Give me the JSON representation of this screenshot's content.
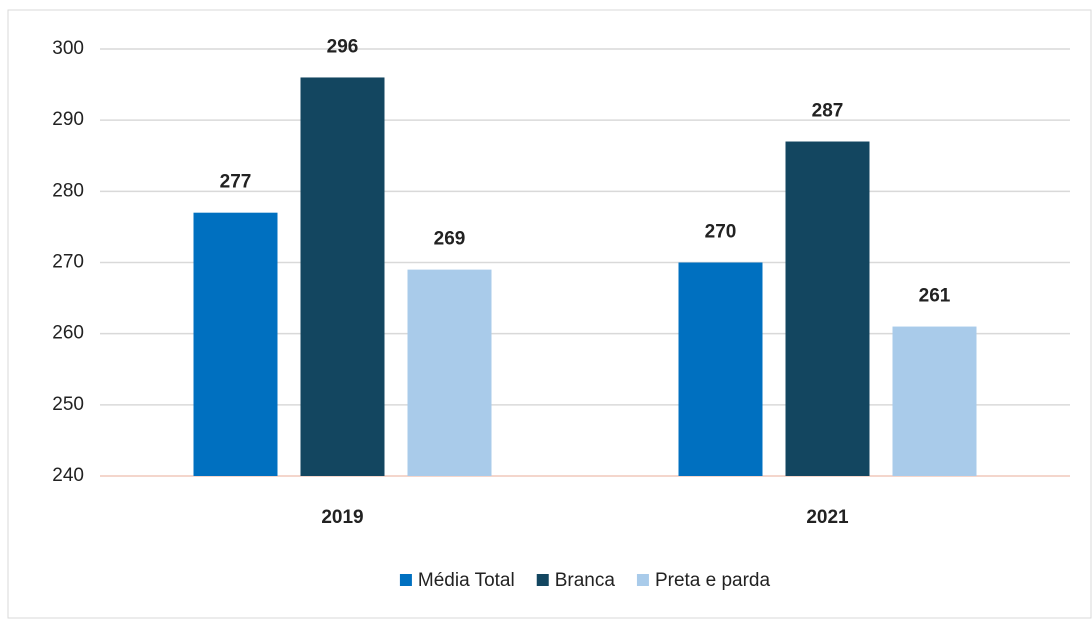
{
  "chart_data": {
    "type": "bar",
    "categories": [
      "2019",
      "2021"
    ],
    "series": [
      {
        "name": "Média Total",
        "color": "#0070c0",
        "values": [
          277,
          270
        ]
      },
      {
        "name": "Branca",
        "color": "#134660",
        "values": [
          296,
          287
        ]
      },
      {
        "name": "Preta e parda",
        "color": "#a9cbea",
        "values": [
          269,
          261
        ]
      }
    ],
    "ylim": [
      240,
      300
    ],
    "yticks": [
      240,
      250,
      260,
      270,
      280,
      290,
      300
    ],
    "grid": true,
    "legend": "bottom"
  }
}
